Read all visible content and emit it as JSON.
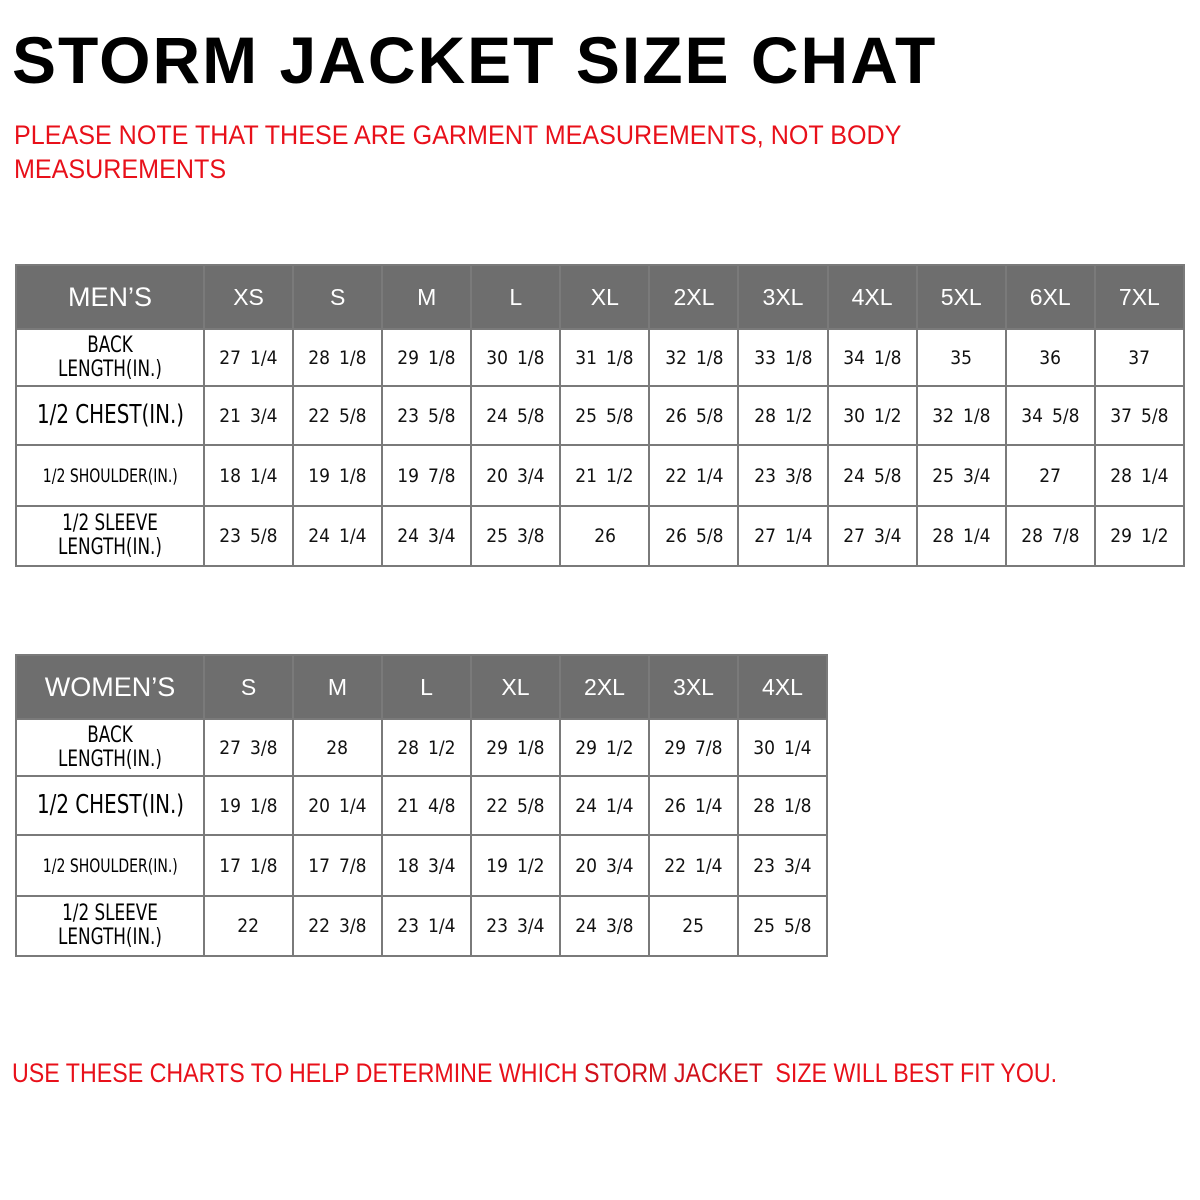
{
  "title": "STORM JACKET SIZE CHAT",
  "note": "PLEASE NOTE THAT THESE ARE GARMENT MEASUREMENTS, NOT BODY MEASUREMENTS",
  "colors": {
    "header_bg": "#6e6e6e",
    "note_red": "#e8101a",
    "border": "#7a7a7a"
  },
  "mens": {
    "header": "MEN’S",
    "sizes": [
      "XS",
      "S",
      "M",
      "L",
      "XL",
      "2XL",
      "3XL",
      "4XL",
      "5XL",
      "6XL",
      "7XL"
    ],
    "rows": [
      {
        "label": "BACK LENGTH(IN.)",
        "values": [
          "27 1/4",
          "28 1/8",
          "29 1/8",
          "30 1/8",
          "31 1/8",
          "32 1/8",
          "33 1/8",
          "34 1/8",
          "35",
          "36",
          "37"
        ]
      },
      {
        "label": "1/2 CHEST(IN.)",
        "values": [
          "21 3/4",
          "22 5/8",
          "23 5/8",
          "24 5/8",
          "25 5/8",
          "26 5/8",
          "28 1/2",
          "30 1/2",
          "32 1/8",
          "34 5/8",
          "37 5/8"
        ]
      },
      {
        "label": "1/2 SHOULDER(IN.)",
        "values": [
          "18 1/4",
          "19 1/8",
          "19 7/8",
          "20 3/4",
          "21 1/2",
          "22 1/4",
          "23 3/8",
          "24 5/8",
          "25 3/4",
          "27",
          "28 1/4"
        ]
      },
      {
        "label": "1/2 SLEEVE LENGTH(IN.)",
        "values": [
          "23 5/8",
          "24 1/4",
          "24 3/4",
          "25 3/8",
          "26",
          "26 5/8",
          "27 1/4",
          "27 3/4",
          "28 1/4",
          "28 7/8",
          "29 1/2"
        ]
      }
    ]
  },
  "womens": {
    "header": "WOMEN’S",
    "sizes": [
      "S",
      "M",
      "L",
      "XL",
      "2XL",
      "3XL",
      "4XL"
    ],
    "rows": [
      {
        "label": "BACK LENGTH(IN.)",
        "values": [
          "27 3/8",
          "28",
          "28 1/2",
          "29 1/8",
          "29 1/2",
          "29 7/8",
          "30 1/4"
        ]
      },
      {
        "label": "1/2 CHEST(IN.)",
        "values": [
          "19 1/8",
          "20 1/4",
          "21 4/8",
          "22 5/8",
          "24 1/4",
          "26 1/4",
          "28 1/8"
        ]
      },
      {
        "label": "1/2 SHOULDER(IN.)",
        "values": [
          "17 1/8",
          "17 7/8",
          "18 3/4",
          "19 1/2",
          "20 3/4",
          "22 1/4",
          "23 3/4"
        ]
      },
      {
        "label": "1/2 SLEEVE LENGTH(IN.)",
        "values": [
          "22",
          "22 3/8",
          "23 1/4",
          "23 3/4",
          "24 3/8",
          "25",
          "25 5/8"
        ]
      }
    ]
  },
  "footer": {
    "prefix": "USE THESE CHARTS TO HELP DETERMINE WHICH ",
    "brand": "STORM JACKET",
    "suffix": "  SIZE WILL BEST FIT YOU."
  }
}
